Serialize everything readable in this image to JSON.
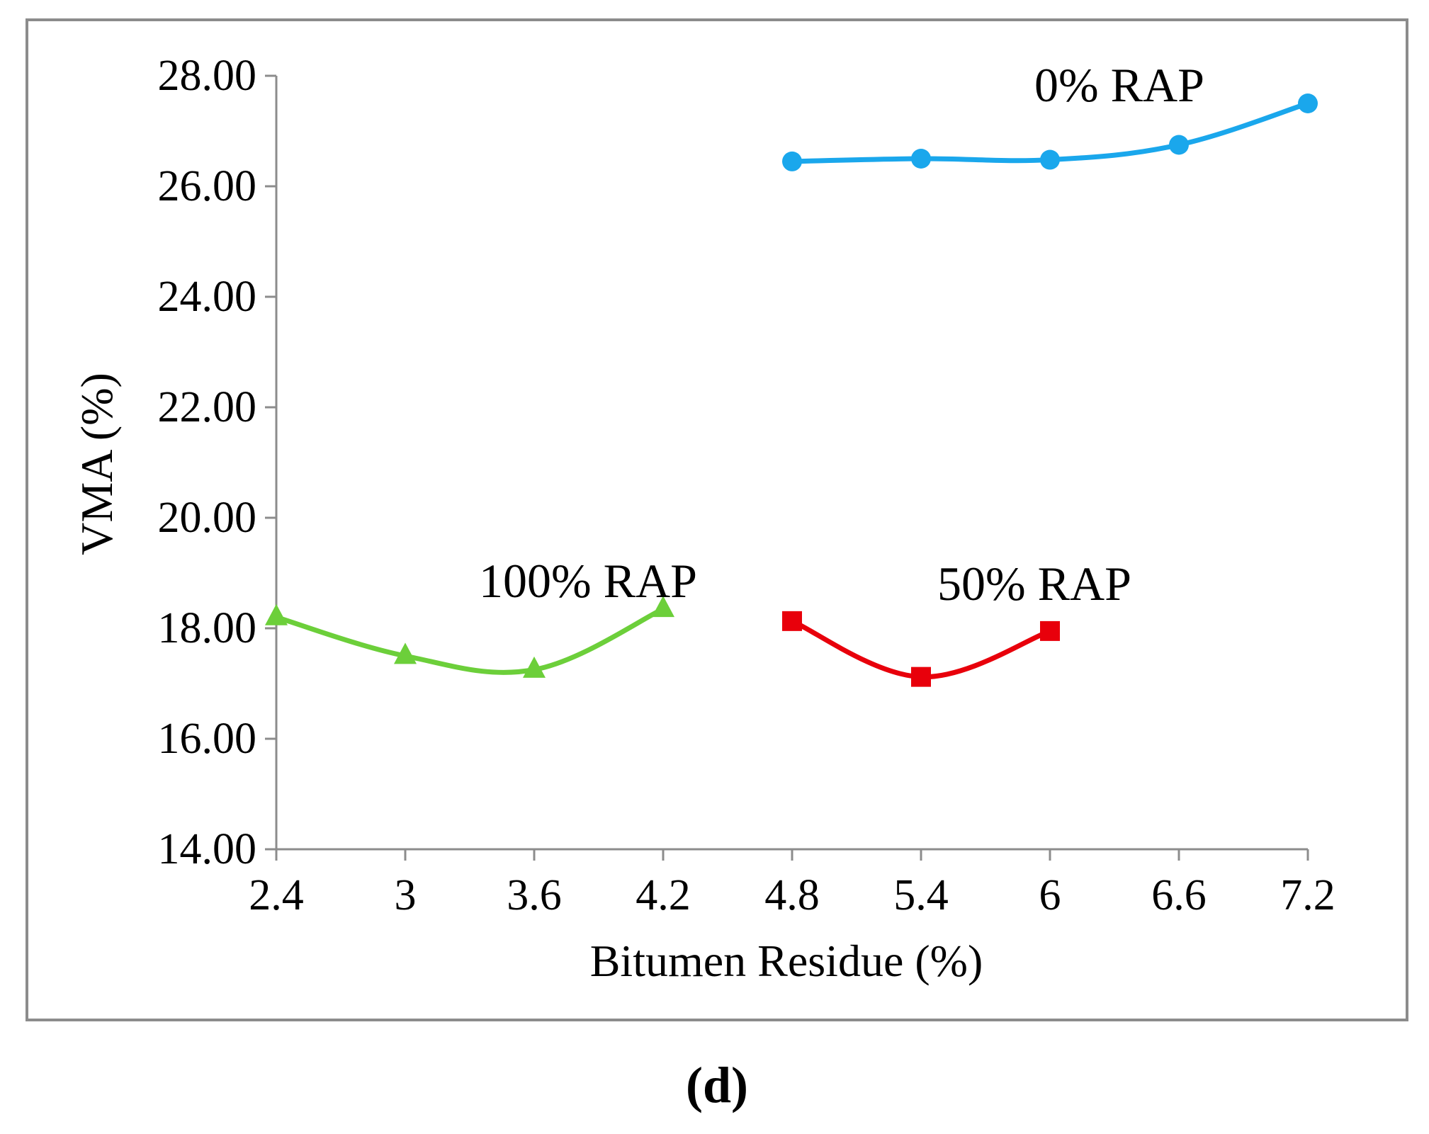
{
  "chart_data": {
    "type": "line",
    "xlabel": "Bitumen Residue (%)",
    "ylabel": "VMA (%)",
    "x_categories": [
      "2.4",
      "3",
      "3.6",
      "4.2",
      "4.8",
      "5.4",
      "6",
      "6.6",
      "7.2"
    ],
    "xlim": [
      2.4,
      7.2
    ],
    "ylim": [
      14,
      28
    ],
    "y_ticks": [
      "14.00",
      "16.00",
      "18.00",
      "20.00",
      "22.00",
      "24.00",
      "26.00",
      "28.00"
    ],
    "grid": false,
    "panel_label": "(d)",
    "series": [
      {
        "name": "0% RAP",
        "color": "#1aa7ec",
        "marker": "circle",
        "x": [
          4.8,
          5.4,
          6.0,
          6.6,
          7.2
        ],
        "y": [
          26.45,
          26.5,
          26.48,
          26.75,
          27.5
        ]
      },
      {
        "name": "50% RAP",
        "color": "#e8000b",
        "marker": "square",
        "x": [
          4.8,
          5.4,
          6.0
        ],
        "y": [
          18.13,
          17.12,
          17.95
        ]
      },
      {
        "name": "100% RAP",
        "color": "#6ccf3a",
        "marker": "triangle",
        "x": [
          2.4,
          3.0,
          3.6,
          4.2
        ],
        "y": [
          18.2,
          17.5,
          17.25,
          18.35
        ]
      }
    ]
  }
}
